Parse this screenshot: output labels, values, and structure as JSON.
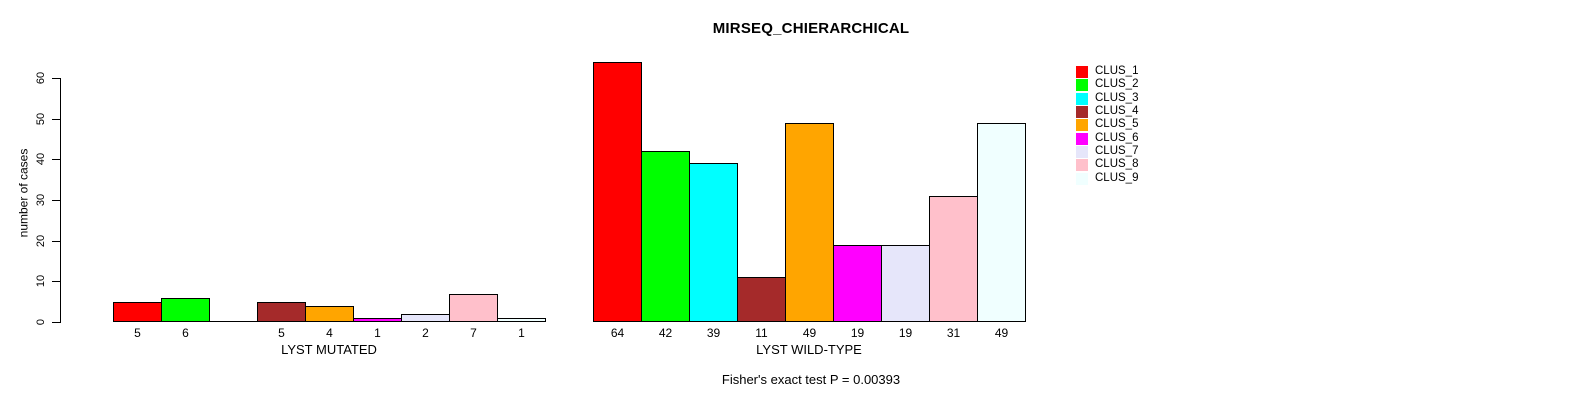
{
  "chart_data": {
    "type": "bar",
    "title": "MIRSEQ_CHIERARCHICAL",
    "ylabel": "number of cases",
    "ylim": [
      0,
      60
    ],
    "yticks": [
      0,
      10,
      20,
      30,
      40,
      50,
      60
    ],
    "grid": false,
    "legend_position": "right",
    "categories": [
      "CLUS_1",
      "CLUS_2",
      "CLUS_3",
      "CLUS_4",
      "CLUS_5",
      "CLUS_6",
      "CLUS_7",
      "CLUS_8",
      "CLUS_9"
    ],
    "colors": [
      "#ff0000",
      "#00ff00",
      "#00ffff",
      "#a52a2a",
      "#ffa500",
      "#ff00ff",
      "#e6e6fa",
      "#ffc0cb",
      "#f0ffff"
    ],
    "groups": [
      {
        "label": "LYST MUTATED",
        "values": [
          5,
          6,
          0,
          5,
          4,
          1,
          2,
          7,
          1
        ]
      },
      {
        "label": "LYST WILD-TYPE",
        "values": [
          64,
          42,
          39,
          11,
          49,
          19,
          19,
          31,
          49
        ]
      }
    ],
    "annotation": "Fisher's exact test P = 0.00393"
  }
}
